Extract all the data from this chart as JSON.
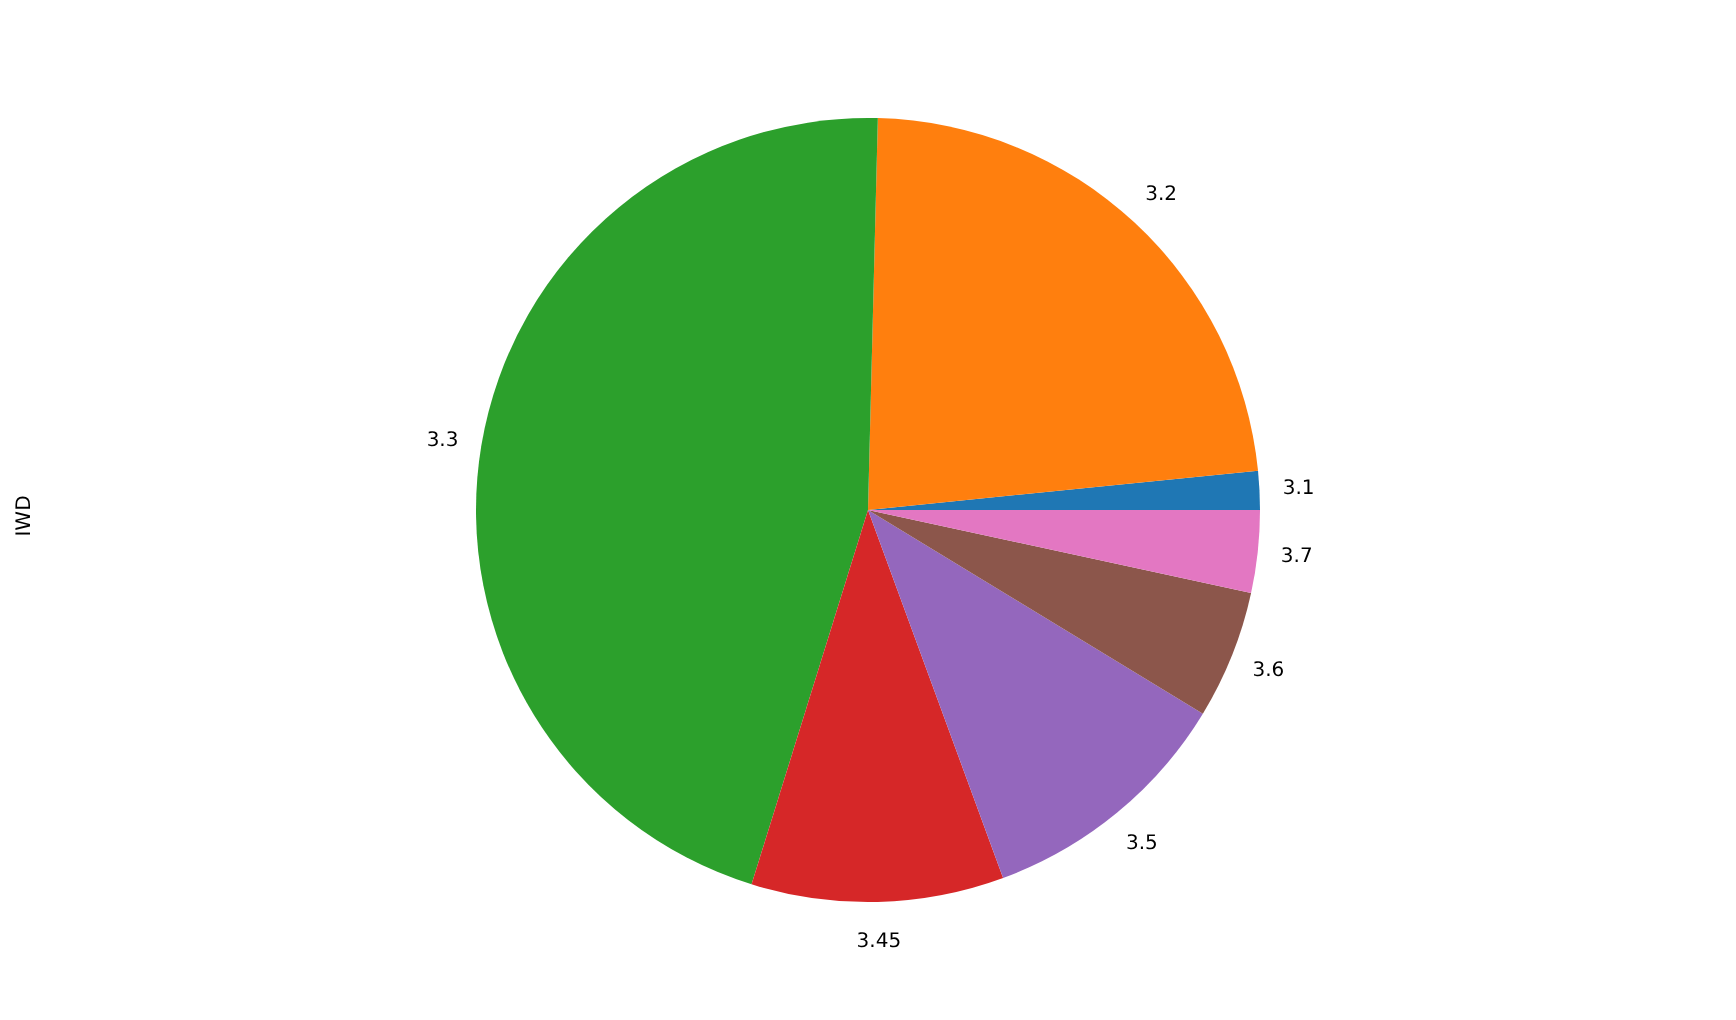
{
  "chart_data": {
    "type": "pie",
    "ylabel": "IWD",
    "categories": [
      "3.1",
      "3.2",
      "3.3",
      "3.45",
      "3.5",
      "3.6",
      "3.7"
    ],
    "values": [
      1.6,
      23.0,
      45.6,
      10.4,
      10.7,
      5.3,
      3.4
    ],
    "colors": [
      "#1f77b4",
      "#ff7f0e",
      "#2ca02c",
      "#d62728",
      "#9467bd",
      "#8c564b",
      "#e377c2"
    ]
  }
}
